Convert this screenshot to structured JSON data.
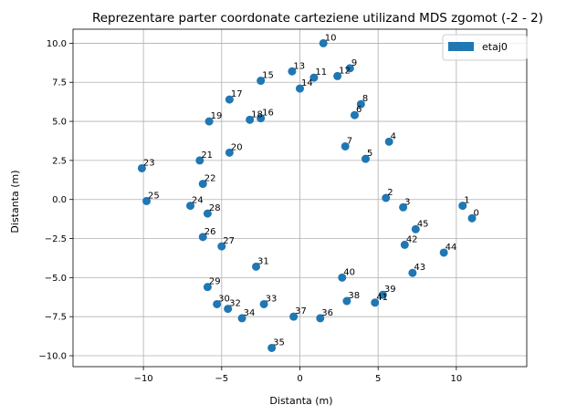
{
  "chart_data": {
    "type": "scatter",
    "title": "Reprezentare parter coordonate carteziene utilizand MDS zgomot (-2 - 2)",
    "xlabel": "Distanta (m)",
    "ylabel": "Distanta (m)",
    "xlim": [
      -14.5,
      14.5
    ],
    "ylim": [
      -10.7,
      10.9
    ],
    "xticks": [
      -10,
      -5,
      0,
      5,
      10
    ],
    "yticks": [
      -10.0,
      -7.5,
      -5.0,
      -2.5,
      0.0,
      2.5,
      5.0,
      7.5,
      10.0
    ],
    "xtick_labels": [
      "−10",
      "−5",
      "0",
      "5",
      "10"
    ],
    "ytick_labels": [
      "−10.0",
      "−7.5",
      "−5.0",
      "−2.5",
      "0.0",
      "2.5",
      "5.0",
      "7.5",
      "10.0"
    ],
    "grid": true,
    "legend_position": "top-right",
    "series": [
      {
        "name": "etaj0",
        "color": "#1f77b4",
        "points": [
          {
            "label": "0",
            "x": 11.0,
            "y": -1.2
          },
          {
            "label": "1",
            "x": 10.4,
            "y": -0.4
          },
          {
            "label": "2",
            "x": 5.5,
            "y": 0.1
          },
          {
            "label": "3",
            "x": 6.6,
            "y": -0.5
          },
          {
            "label": "4",
            "x": 5.7,
            "y": 3.7
          },
          {
            "label": "5",
            "x": 4.2,
            "y": 2.6
          },
          {
            "label": "6",
            "x": 3.5,
            "y": 5.4
          },
          {
            "label": "7",
            "x": 2.9,
            "y": 3.4
          },
          {
            "label": "8",
            "x": 3.9,
            "y": 6.1
          },
          {
            "label": "9",
            "x": 3.2,
            "y": 8.4
          },
          {
            "label": "10",
            "x": 1.5,
            "y": 10.0
          },
          {
            "label": "11",
            "x": 0.9,
            "y": 7.8
          },
          {
            "label": "12",
            "x": 2.4,
            "y": 7.9
          },
          {
            "label": "13",
            "x": -0.5,
            "y": 8.2
          },
          {
            "label": "14",
            "x": 0.0,
            "y": 7.1
          },
          {
            "label": "15",
            "x": -2.5,
            "y": 7.6
          },
          {
            "label": "16",
            "x": -2.5,
            "y": 5.2
          },
          {
            "label": "17",
            "x": -4.5,
            "y": 6.4
          },
          {
            "label": "18",
            "x": -3.2,
            "y": 5.1
          },
          {
            "label": "19",
            "x": -5.8,
            "y": 5.0
          },
          {
            "label": "20",
            "x": -4.5,
            "y": 3.0
          },
          {
            "label": "21",
            "x": -6.4,
            "y": 2.5
          },
          {
            "label": "22",
            "x": -6.2,
            "y": 1.0
          },
          {
            "label": "23",
            "x": -10.1,
            "y": 2.0
          },
          {
            "label": "24",
            "x": -7.0,
            "y": -0.4
          },
          {
            "label": "25",
            "x": -9.8,
            "y": -0.1
          },
          {
            "label": "26",
            "x": -6.2,
            "y": -2.4
          },
          {
            "label": "27",
            "x": -5.0,
            "y": -3.0
          },
          {
            "label": "28",
            "x": -5.9,
            "y": -0.9
          },
          {
            "label": "29",
            "x": -5.9,
            "y": -5.6
          },
          {
            "label": "30",
            "x": -5.3,
            "y": -6.7
          },
          {
            "label": "31",
            "x": -2.8,
            "y": -4.3
          },
          {
            "label": "32",
            "x": -4.6,
            "y": -7.0
          },
          {
            "label": "33",
            "x": -2.3,
            "y": -6.7
          },
          {
            "label": "34",
            "x": -3.7,
            "y": -7.6
          },
          {
            "label": "35",
            "x": -1.8,
            "y": -9.5
          },
          {
            "label": "36",
            "x": 1.3,
            "y": -7.6
          },
          {
            "label": "37",
            "x": -0.4,
            "y": -7.5
          },
          {
            "label": "38",
            "x": 3.0,
            "y": -6.5
          },
          {
            "label": "39",
            "x": 5.3,
            "y": -6.1
          },
          {
            "label": "40",
            "x": 2.7,
            "y": -5.0
          },
          {
            "label": "41",
            "x": 4.8,
            "y": -6.6
          },
          {
            "label": "42",
            "x": 6.7,
            "y": -2.9
          },
          {
            "label": "43",
            "x": 7.2,
            "y": -4.7
          },
          {
            "label": "44",
            "x": 9.2,
            "y": -3.4
          },
          {
            "label": "45",
            "x": 7.4,
            "y": -1.9
          }
        ]
      }
    ]
  }
}
